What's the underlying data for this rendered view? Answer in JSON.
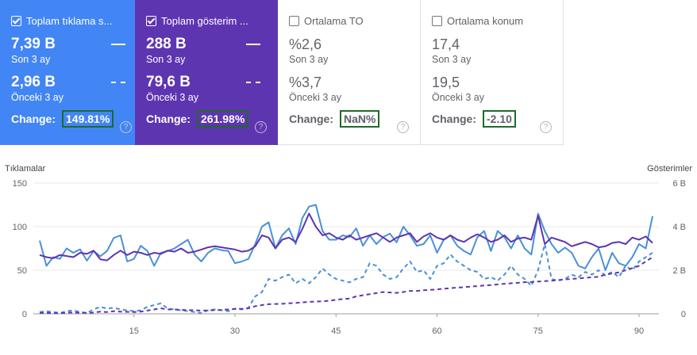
{
  "cards": [
    {
      "title": "Toplam tıklama s...",
      "current": "7,39 B",
      "current_period": "Son 3 ay",
      "previous": "2,96 B",
      "previous_period": "Önceki 3 ay",
      "change_label": "Change:",
      "change_value": "149.81%",
      "checked": true,
      "color": "#4285f4"
    },
    {
      "title": "Toplam gösterim ...",
      "current": "288 B",
      "current_period": "Son 3 ay",
      "previous": "79,6 B",
      "previous_period": "Önceki 3 ay",
      "change_label": "Change:",
      "change_value": "261.98%",
      "checked": true,
      "color": "#5e35b1"
    },
    {
      "title": "Ortalama TO",
      "current": "%2,6",
      "current_period": "Son 3 ay",
      "previous": "%3,7",
      "previous_period": "Önceki 3 ay",
      "change_label": "Change:",
      "change_value": "NaN%",
      "checked": false,
      "color": "#ffffff"
    },
    {
      "title": "Ortalama konum",
      "current": "17,4",
      "current_period": "Son 3 ay",
      "previous": "19,5",
      "previous_period": "Önceki 3 ay",
      "change_label": "Change:",
      "change_value": "-2.10",
      "checked": false,
      "color": "#ffffff"
    }
  ],
  "help_icon": "?",
  "chart_data": {
    "type": "line",
    "left_axis_title": "Tıklamalar",
    "right_axis_title": "Gösterimler",
    "left_ticks": [
      "150",
      "100",
      "50",
      "0"
    ],
    "right_ticks": [
      "6 B",
      "4 B",
      "2 B",
      "0"
    ],
    "x_ticks": [
      "15",
      "30",
      "45",
      "60",
      "75",
      "90"
    ],
    "x_tick_values": [
      15,
      30,
      45,
      60,
      75,
      90
    ],
    "xlim": [
      1,
      92
    ],
    "ylim_left": [
      0,
      150
    ],
    "ylim_right": [
      0,
      6000
    ],
    "grid": true,
    "series": [
      {
        "axis": "left",
        "color": "#4a90d9",
        "style": "solid",
        "values": [
          84,
          55,
          65,
          63,
          75,
          70,
          74,
          61,
          72,
          66,
          72,
          87,
          90,
          60,
          63,
          78,
          72,
          55,
          70,
          72,
          75,
          80,
          85,
          68,
          60,
          70,
          75,
          73,
          72,
          58,
          60,
          63,
          80,
          100,
          105,
          75,
          90,
          98,
          80,
          110,
          123,
          125,
          95,
          85,
          85,
          90,
          88,
          98,
          78,
          90,
          80,
          88,
          92,
          82,
          100,
          90,
          78,
          80,
          90,
          70,
          85,
          90,
          78,
          72,
          68,
          88,
          95,
          72,
          95,
          88,
          75,
          90,
          75,
          68,
          115,
          95,
          80,
          70,
          76,
          70,
          55,
          52,
          65,
          75,
          50,
          70,
          58,
          55,
          65,
          80,
          75,
          112
        ]
      },
      {
        "axis": "right",
        "color": "#5e35b1",
        "style": "solid",
        "values": [
          2700,
          2600,
          2550,
          2700,
          2650,
          2600,
          2800,
          2750,
          2900,
          2500,
          2450,
          2700,
          2900,
          2700,
          2850,
          2800,
          2700,
          2800,
          2750,
          2900,
          2850,
          3000,
          2800,
          2850,
          2950,
          3050,
          3100,
          3050,
          3000,
          2950,
          2850,
          2900,
          3100,
          3600,
          3500,
          3000,
          3400,
          3500,
          3300,
          3900,
          4600,
          4000,
          3600,
          3700,
          3500,
          3400,
          3600,
          3400,
          3500,
          3600,
          3700,
          3500,
          3300,
          3500,
          3600,
          3700,
          3300,
          3550,
          3700,
          3500,
          3400,
          3600,
          3400,
          3300,
          3500,
          3650,
          3500,
          3300,
          3400,
          3600,
          3300,
          3450,
          3500,
          3400,
          4500,
          3200,
          3500,
          3400,
          3300,
          3100,
          3200,
          3300,
          3200,
          3050,
          3100,
          3250,
          3300,
          3200,
          3500,
          3400,
          3550,
          3250
        ]
      },
      {
        "axis": "left",
        "color": "#4a90d9",
        "style": "dash",
        "values": [
          2,
          3,
          2,
          1,
          3,
          4,
          2,
          1,
          5,
          8,
          6,
          7,
          5,
          4,
          3,
          4,
          8,
          10,
          12,
          6,
          5,
          4,
          3,
          2,
          1,
          4,
          5,
          4,
          3,
          6,
          5,
          7,
          20,
          25,
          40,
          38,
          42,
          45,
          35,
          40,
          35,
          42,
          52,
          45,
          40,
          38,
          36,
          40,
          42,
          58,
          55,
          45,
          40,
          42,
          52,
          60,
          48,
          50,
          40,
          55,
          58,
          68,
          60,
          55,
          50,
          48,
          40,
          42,
          38,
          45,
          55,
          45,
          40,
          32,
          50,
          80,
          40,
          38,
          40,
          45,
          42,
          48,
          45,
          50,
          44,
          48,
          42,
          55,
          50,
          60,
          65,
          70
        ]
      },
      {
        "axis": "right",
        "color": "#5e35b1",
        "style": "dash",
        "values": [
          40,
          40,
          30,
          30,
          50,
          60,
          50,
          40,
          60,
          100,
          80,
          120,
          100,
          90,
          80,
          100,
          150,
          200,
          250,
          200,
          200,
          180,
          170,
          160,
          150,
          150,
          170,
          180,
          200,
          220,
          230,
          250,
          350,
          400,
          440,
          450,
          460,
          480,
          500,
          520,
          550,
          560,
          580,
          600,
          640,
          680,
          700,
          800,
          850,
          900,
          950,
          1000,
          980,
          960,
          1000,
          1050,
          1050,
          1080,
          1100,
          1120,
          1150,
          1180,
          1200,
          1220,
          1250,
          1270,
          1300,
          1320,
          1350,
          1380,
          1400,
          1420,
          1450,
          1460,
          1480,
          1500,
          1520,
          1550,
          1580,
          1600,
          1620,
          1650,
          1680,
          1700,
          1800,
          1850,
          1900,
          2000,
          2100,
          2200,
          2400,
          2600
        ]
      }
    ]
  }
}
